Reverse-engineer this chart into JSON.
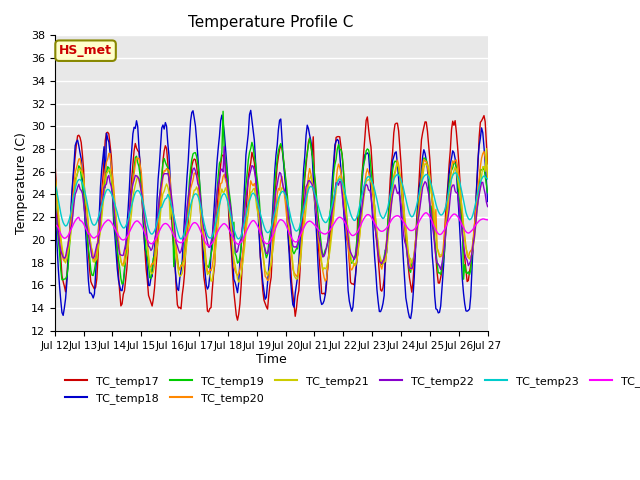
{
  "title": "Temperature Profile C",
  "xlabel": "Time",
  "ylabel": "Temperature (C)",
  "ylim": [
    12,
    38
  ],
  "yticks": [
    12,
    14,
    16,
    18,
    20,
    22,
    24,
    26,
    28,
    30,
    32,
    34,
    36,
    38
  ],
  "series_colors": {
    "TC_temp17": "#cc0000",
    "TC_temp18": "#0000cc",
    "TC_temp19": "#00cc00",
    "TC_temp20": "#ff8800",
    "TC_temp21": "#cccc00",
    "TC_temp22": "#8800cc",
    "TC_temp23": "#00cccc",
    "TC_temp24": "#ff00ff"
  },
  "annotation_text": "HS_met",
  "annotation_color": "#cc0000",
  "annotation_bg": "#ffffcc",
  "annotation_border": "#888800",
  "plot_bg": "#e8e8e8",
  "fig_bg": "#ffffff",
  "grid_color": "#ffffff",
  "x_tick_labels": [
    "Jul 12",
    "Jul 13",
    "Jul 14",
    "Jul 15",
    "Jul 16",
    "Jul 17",
    "Jul 18",
    "Jul 19",
    "Jul 20",
    "Jul 21",
    "Jul 22",
    "Jul 23",
    "Jul 24",
    "Jul 25",
    "Jul 26",
    "Jul 27"
  ],
  "x_tick_positions": [
    0,
    24,
    48,
    72,
    96,
    120,
    144,
    168,
    192,
    216,
    240,
    264,
    288,
    312,
    336,
    360
  ],
  "n_points": 361,
  "figsize": [
    6.4,
    4.8
  ],
  "dpi": 100
}
